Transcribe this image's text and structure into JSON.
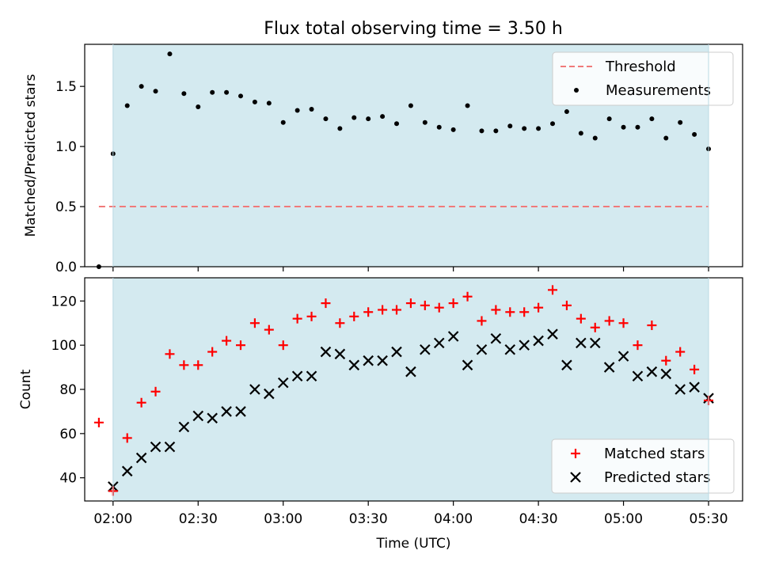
{
  "title": "Flux total observing time = 3.50 h",
  "colors": {
    "shade": "#d4eaf0",
    "threshold": "#f07a7a",
    "measurements": "#000000",
    "matched": "#ff0000",
    "predicted": "#000000"
  },
  "chart_data": [
    {
      "type": "scatter",
      "panel": "top",
      "ylabel": "Matched/Predicted stars",
      "xlabel": "",
      "x_unit": "minutes_since_00:00_UTC",
      "xlim": [
        110,
        342
      ],
      "ylim": [
        0.0,
        1.85
      ],
      "y_ticks": [
        "0.0",
        "0.5",
        "1.0",
        "1.5"
      ],
      "y_tick_values": [
        0.0,
        0.5,
        1.0,
        1.5
      ],
      "shaded_x_range": [
        120,
        330
      ],
      "threshold": {
        "name": "Threshold",
        "value": 0.5,
        "x_range": [
          115,
          330
        ]
      },
      "legend": {
        "location": "top-right",
        "entries": [
          "Threshold",
          "Measurements"
        ]
      },
      "series": [
        {
          "name": "Measurements",
          "x": [
            115,
            120,
            125,
            130,
            135,
            140,
            145,
            150,
            155,
            160,
            165,
            170,
            175,
            180,
            185,
            190,
            195,
            200,
            205,
            210,
            215,
            220,
            225,
            230,
            235,
            240,
            245,
            250,
            255,
            260,
            265,
            270,
            275,
            280,
            285,
            290,
            295,
            300,
            305,
            310,
            315,
            320,
            325,
            330
          ],
          "y": [
            0.0,
            0.94,
            1.34,
            1.5,
            1.46,
            1.77,
            1.44,
            1.33,
            1.45,
            1.45,
            1.42,
            1.37,
            1.36,
            1.2,
            1.3,
            1.31,
            1.23,
            1.15,
            1.24,
            1.23,
            1.25,
            1.19,
            1.34,
            1.2,
            1.16,
            1.14,
            1.34,
            1.13,
            1.13,
            1.17,
            1.15,
            1.15,
            1.19,
            1.29,
            1.11,
            1.07,
            1.23,
            1.16,
            1.16,
            1.23,
            1.07,
            1.2,
            1.1,
            0.98
          ]
        }
      ]
    },
    {
      "type": "scatter",
      "panel": "bottom",
      "ylabel": "Count",
      "xlabel": "Time (UTC)",
      "x_unit": "minutes_since_00:00_UTC",
      "xlim": [
        110,
        342
      ],
      "ylim": [
        29.5,
        130.5
      ],
      "x_ticks": [
        "02:00",
        "02:30",
        "03:00",
        "03:30",
        "04:00",
        "04:30",
        "05:00",
        "05:30"
      ],
      "x_tick_values": [
        120,
        150,
        180,
        210,
        240,
        270,
        300,
        330
      ],
      "y_ticks": [
        "40",
        "60",
        "80",
        "100",
        "120"
      ],
      "y_tick_values": [
        40,
        60,
        80,
        100,
        120
      ],
      "shaded_x_range": [
        120,
        330
      ],
      "legend": {
        "location": "bottom-right",
        "entries": [
          "Matched stars",
          "Predicted stars"
        ]
      },
      "series": [
        {
          "name": "Matched stars",
          "marker": "plus",
          "x": [
            115,
            120,
            125,
            130,
            135,
            140,
            145,
            150,
            155,
            160,
            165,
            170,
            175,
            180,
            185,
            190,
            195,
            200,
            205,
            210,
            215,
            220,
            225,
            230,
            235,
            240,
            245,
            250,
            255,
            260,
            265,
            270,
            275,
            280,
            285,
            290,
            295,
            300,
            305,
            310,
            315,
            320,
            325,
            330
          ],
          "y": [
            65,
            34,
            58,
            74,
            79,
            96,
            91,
            91,
            97,
            102,
            100,
            110,
            107,
            100,
            112,
            113,
            119,
            110,
            113,
            115,
            116,
            116,
            119,
            118,
            117,
            119,
            122,
            111,
            116,
            115,
            115,
            117,
            125,
            118,
            112,
            108,
            111,
            110,
            100,
            109,
            93,
            97,
            89,
            75
          ]
        },
        {
          "name": "Predicted stars",
          "marker": "x",
          "x": [
            120,
            125,
            130,
            135,
            140,
            145,
            150,
            155,
            160,
            165,
            170,
            175,
            180,
            185,
            190,
            195,
            200,
            205,
            210,
            215,
            220,
            225,
            230,
            235,
            240,
            245,
            250,
            255,
            260,
            265,
            270,
            275,
            280,
            285,
            290,
            295,
            300,
            305,
            310,
            315,
            320,
            325,
            330
          ],
          "y": [
            36,
            43,
            49,
            54,
            54,
            63,
            68,
            67,
            70,
            70,
            80,
            78,
            83,
            86,
            86,
            97,
            96,
            91,
            93,
            93,
            97,
            88,
            98,
            101,
            104,
            91,
            98,
            103,
            98,
            100,
            102,
            105,
            91,
            101,
            101,
            90,
            95,
            86,
            88,
            87,
            80,
            81,
            76
          ]
        }
      ]
    }
  ]
}
